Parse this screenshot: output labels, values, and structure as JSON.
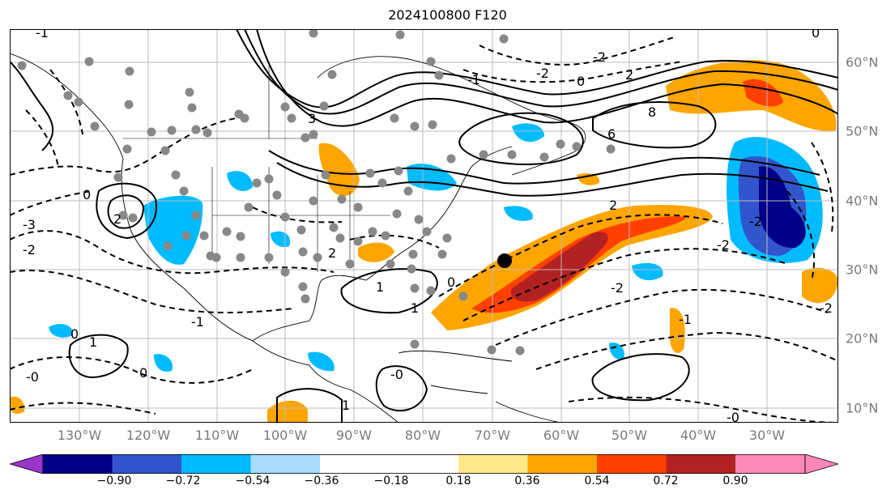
{
  "title": "2024100800 F120",
  "lon_labels": [
    "130°W",
    "120°W",
    "110°W",
    "100°W",
    "90°W",
    "80°W",
    "70°W",
    "60°W",
    "50°W",
    "40°W",
    "30°W"
  ],
  "lat_labels": [
    "60°N",
    "50°N",
    "40°N",
    "30°N",
    "20°N",
    "10°N"
  ],
  "colorbar": {
    "ticks": [
      "−0.90",
      "−0.72",
      "−0.54",
      "−0.36",
      "−0.18",
      "0.18",
      "0.36",
      "0.54",
      "0.72",
      "0.90"
    ],
    "colors": [
      "#9933cc",
      "#000088",
      "#3355cc",
      "#00bbff",
      "#aaddff",
      "#ffffff",
      "#ffe88a",
      "#ffa500",
      "#ff4000",
      "#b22222",
      "#ff88b8"
    ]
  },
  "contour_labels": [
    "-3",
    "-2",
    "-1",
    "0",
    "1",
    "2",
    "3",
    "6",
    "8",
    "-0",
    "-2",
    "-1",
    "0",
    "1",
    "2",
    "-2",
    "0",
    "1",
    "0",
    "-2",
    "2",
    "-0",
    "-1",
    "-2",
    "-2",
    "2",
    "-1",
    "0",
    "-0",
    "1",
    "-2",
    "0"
  ],
  "marker_label": ""
}
